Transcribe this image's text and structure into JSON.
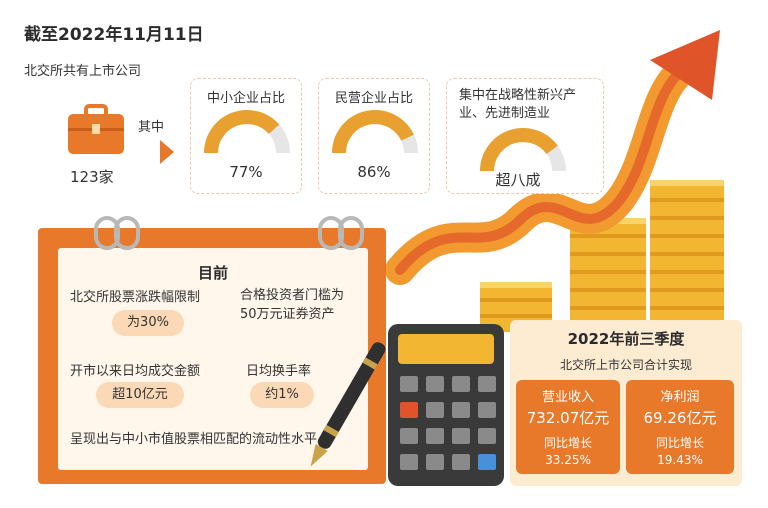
{
  "header": {
    "title": "截至2022年11月11日"
  },
  "overview": {
    "intro": "北交所共有上市公司",
    "count": "123家",
    "among": "其中"
  },
  "stats": [
    {
      "label": "中小企业占比",
      "value": "77%",
      "fraction": 0.77
    },
    {
      "label": "民营企业占比",
      "value": "86%",
      "fraction": 0.86
    },
    {
      "label": "集中在战略性新兴产业、先进制造业",
      "value": "超八成",
      "fraction": 0.8
    }
  ],
  "current": {
    "heading": "目前",
    "items": [
      {
        "label": "北交所股票涨跌幅限制",
        "value": "为30%"
      },
      {
        "label": "合格投资者门槛为50万元证券资产",
        "value": ""
      },
      {
        "label": "开市以来日均成交金额",
        "value": "超10亿元"
      },
      {
        "label": "日均换手率",
        "value": "约1%"
      }
    ],
    "footer": "呈现出与中小市值股票相匹配的流动性水平"
  },
  "q3": {
    "title": "2022年前三季度",
    "subtitle": "北交所上市公司合计实现",
    "cards": [
      {
        "label": "营业收入",
        "value": "732.07亿元",
        "growth_label": "同比增长",
        "growth": "33.25%"
      },
      {
        "label": "净利润",
        "value": "69.26亿元",
        "growth_label": "同比增长",
        "growth": "19.43%"
      }
    ]
  },
  "colors": {
    "accent": "#e8792a",
    "gauge_fill": "#e8a030",
    "gauge_track": "#e6e6e6",
    "coin": "#f2b632"
  }
}
